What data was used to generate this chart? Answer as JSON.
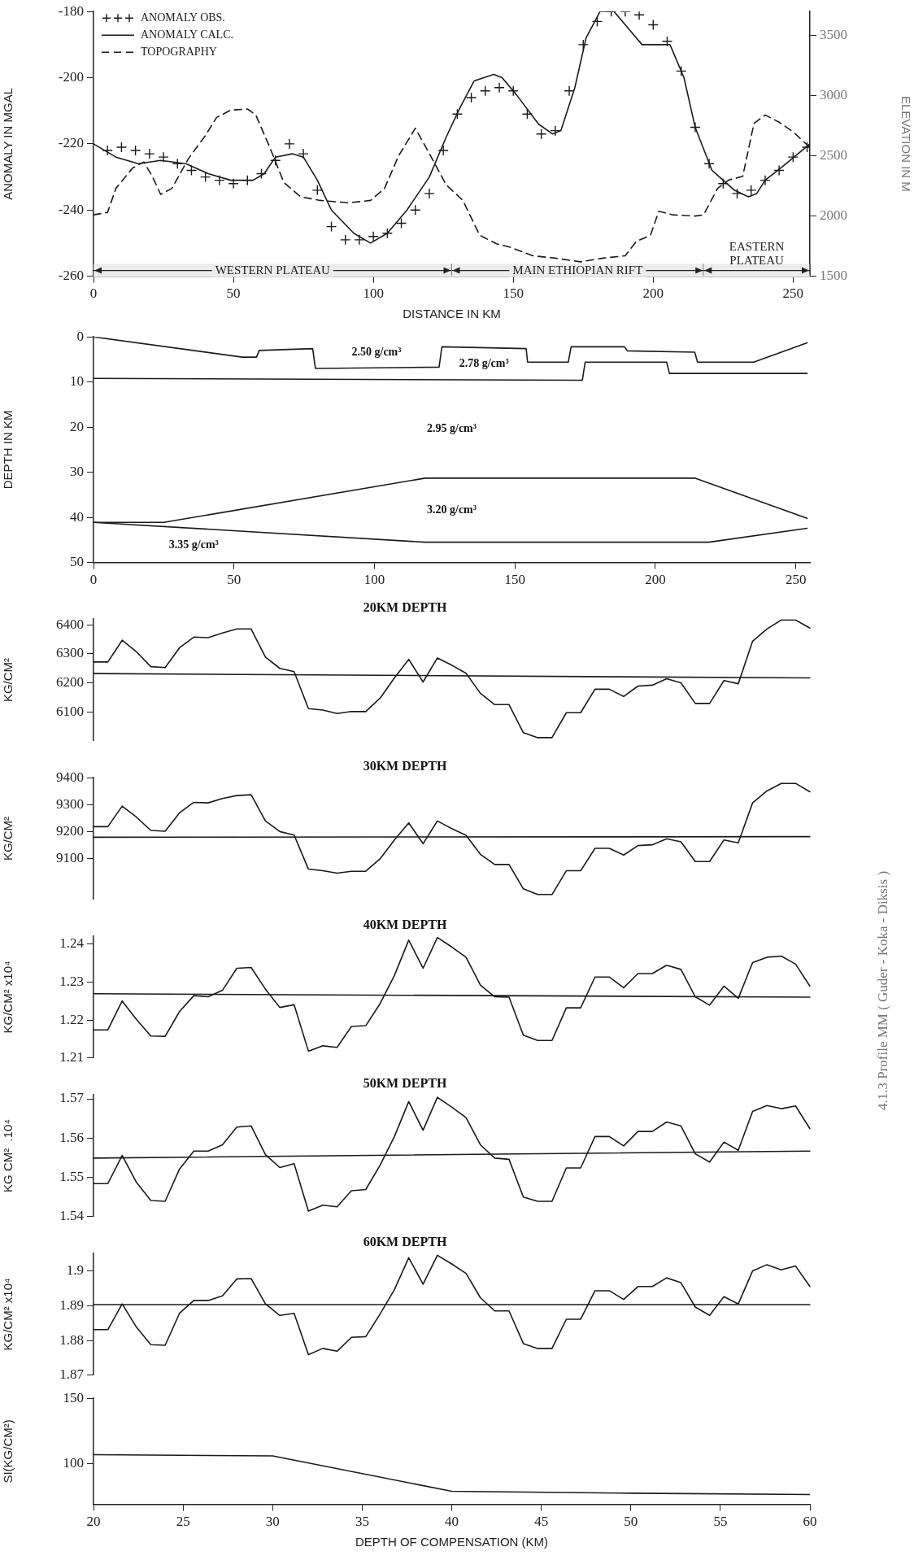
{
  "chart_data": [
    {
      "type": "line",
      "xlabel": "DISTANCE IN KM",
      "ylabel": "ANOMALY IN MGAL",
      "y2label": "ELEVATION IN M",
      "xlim": [
        0,
        256
      ],
      "xticks": [
        0,
        50,
        100,
        150,
        200,
        250
      ],
      "ylim": [
        -260,
        -180
      ],
      "yticks": [
        -260,
        -240,
        -220,
        -200,
        -180
      ],
      "y2lim": [
        1500,
        3700
      ],
      "y2ticks": [
        1500,
        2000,
        2500,
        3000,
        3500
      ],
      "legend": "top left",
      "series": [
        {
          "name": "ANOMALY OBS.",
          "type": "scatter",
          "marker": "cross",
          "color": "#1a1a1a",
          "x": [
            5,
            10,
            15,
            20,
            25,
            30,
            35,
            40,
            45,
            50,
            55,
            60,
            65,
            70,
            75,
            80,
            85,
            90,
            95,
            100,
            105,
            110,
            115,
            120,
            125,
            130,
            135,
            140,
            145,
            150,
            155,
            160,
            165,
            170,
            175,
            180,
            185,
            190,
            195,
            200,
            205,
            210,
            215,
            220,
            225,
            230,
            235,
            240,
            245,
            250,
            255
          ],
          "values": [
            -222,
            -221,
            -222,
            -223,
            -224,
            -226,
            -228,
            -230,
            -231,
            -232,
            -231,
            -229,
            -225,
            -220,
            -223,
            -234,
            -245,
            -249,
            -249,
            -248,
            -247,
            -244,
            -240,
            -235,
            -222,
            -211,
            -206,
            -204,
            -203,
            -204,
            -211,
            -217,
            -216,
            -204,
            -190,
            -183,
            -180,
            -180,
            -181,
            -184,
            -189,
            -198,
            -215,
            -226,
            -232,
            -235,
            -234,
            -231,
            -228,
            -224,
            -221
          ]
        },
        {
          "name": "ANOMALY CALC.",
          "type": "line",
          "color": "#1a1a1a",
          "x": [
            0,
            8,
            16,
            24,
            33,
            41,
            49,
            57,
            61,
            65,
            71,
            75,
            80,
            85,
            93,
            99,
            105,
            112,
            120,
            126,
            131,
            136,
            143,
            146,
            151,
            159,
            164,
            167,
            172,
            176,
            181,
            186,
            191,
            196,
            206,
            211,
            215,
            221,
            229,
            234,
            237,
            240,
            246,
            256
          ],
          "values": [
            -220,
            -224,
            -226,
            -225,
            -226,
            -229,
            -231,
            -231,
            -229,
            -224,
            -223,
            -224,
            -231,
            -240,
            -247,
            -250,
            -247,
            -240,
            -230,
            -218,
            -209,
            -201,
            -199,
            -200,
            -205,
            -214,
            -217,
            -216,
            -203,
            -188,
            -180,
            -180,
            -185,
            -190,
            -190,
            -200,
            -215,
            -228,
            -234,
            -236,
            -235,
            -231,
            -227,
            -220
          ]
        },
        {
          "name": "TOPOGRAPHY",
          "type": "line",
          "line_style": "dashed",
          "axis": "y2",
          "color": "#1a1a1a",
          "x": [
            0,
            5,
            8,
            14,
            18,
            21,
            24,
            28,
            34,
            40,
            44,
            49,
            55,
            58,
            63,
            68,
            74,
            81,
            91,
            99,
            104,
            109,
            115,
            120,
            126,
            132,
            138,
            144,
            149,
            157,
            165,
            174,
            182,
            190,
            194,
            199,
            202,
            207,
            215,
            218,
            223,
            227,
            232,
            234,
            236,
            240,
            245,
            250,
            256
          ],
          "values": [
            2010,
            2030,
            2230,
            2400,
            2450,
            2330,
            2180,
            2230,
            2480,
            2670,
            2820,
            2880,
            2890,
            2840,
            2570,
            2280,
            2160,
            2130,
            2110,
            2130,
            2230,
            2500,
            2730,
            2520,
            2260,
            2130,
            1840,
            1770,
            1740,
            1670,
            1650,
            1620,
            1650,
            1670,
            1790,
            1840,
            2040,
            2010,
            2000,
            2010,
            2230,
            2300,
            2330,
            2550,
            2770,
            2840,
            2780,
            2700,
            2570
          ]
        }
      ],
      "bands": [
        {
          "axis": "x",
          "from": 0,
          "to": 128,
          "label": "WESTERN PLATEAU"
        },
        {
          "axis": "x",
          "from": 128,
          "to": 218,
          "label": "MAIN ETHIOPIAN RIFT"
        },
        {
          "axis": "x",
          "from": 218,
          "to": 256,
          "label": "EASTERN PLATEAU"
        }
      ]
    },
    {
      "type": "line",
      "ylabel": "DEPTH IN KM",
      "xlim": [
        0,
        255
      ],
      "xticks": [
        0,
        50,
        100,
        150,
        200,
        250
      ],
      "ylim": [
        50,
        0
      ],
      "yticks": [
        0,
        10,
        20,
        30,
        40,
        50
      ],
      "series": [
        {
          "color": "#1a1a1a",
          "x": [
            0,
            53,
            58,
            59,
            78,
            79,
            123,
            124,
            154,
            154.5,
            169,
            170,
            189,
            190,
            214,
            215,
            235,
            254
          ],
          "values": [
            0,
            4.5,
            4.5,
            3,
            2.6,
            7,
            6.7,
            2.2,
            2.6,
            5.6,
            5.6,
            2.2,
            2.2,
            3.1,
            3.4,
            5.6,
            5.6,
            1.3
          ]
        },
        {
          "color": "#1a1a1a",
          "x": [
            0,
            174,
            175,
            204,
            205,
            254
          ],
          "values": [
            9.2,
            9.6,
            5.6,
            5.6,
            8.1,
            8.1
          ]
        },
        {
          "color": "#1a1a1a",
          "x": [
            0,
            25,
            118,
            214,
            254
          ],
          "values": [
            41.1,
            41.1,
            31.3,
            31.3,
            40.2
          ]
        },
        {
          "color": "#1a1a1a",
          "x": [
            0,
            118,
            219,
            254
          ],
          "values": [
            41.1,
            45.5,
            45.5,
            42.4
          ]
        }
      ],
      "annotations": [
        "2.50 g/cm³",
        "2.78 g/cm³",
        "2.95 g/cm³",
        "3.20 g/cm³",
        "3.35 g/cm³"
      ]
    },
    {
      "type": "line",
      "title": "20KM DEPTH",
      "ylabel": "KG/CM²",
      "ylim": [
        6000,
        6420
      ],
      "yticks": [
        6100,
        6200,
        6300,
        6400
      ],
      "categories": [
        null,
        null,
        null,
        null,
        null,
        null,
        null,
        null,
        null,
        null,
        null,
        null,
        null,
        null,
        null,
        null,
        null,
        null,
        null,
        null,
        null,
        null,
        null,
        null,
        null,
        null,
        null,
        null,
        null,
        null,
        null,
        null,
        null,
        null,
        null,
        null,
        null,
        null,
        null,
        null,
        null,
        null,
        null,
        null,
        null,
        null,
        null,
        null,
        null,
        null,
        null
      ],
      "series": [
        {
          "color": "#1a1a1a",
          "values": [
            6272,
            6272,
            6347,
            6307,
            6256,
            6253,
            6321,
            6358,
            6356,
            6372,
            6386,
            6386,
            6289,
            6250,
            6239,
            6111,
            6106,
            6094,
            6101,
            6101,
            6147,
            6217,
            6281,
            6203,
            6286,
            6261,
            6233,
            6164,
            6125,
            6125,
            6028,
            6011,
            6011,
            6097,
            6097,
            6178,
            6178,
            6153,
            6189,
            6192,
            6214,
            6200,
            6129,
            6129,
            6208,
            6197,
            6344,
            6386,
            6417,
            6417,
            6389
          ]
        },
        {
          "color": "#1a1a1a",
          "values": [
            6232,
            null,
            null,
            null,
            null,
            null,
            null,
            null,
            null,
            null,
            null,
            null,
            null,
            null,
            null,
            null,
            null,
            null,
            null,
            null,
            null,
            null,
            null,
            null,
            null,
            null,
            null,
            null,
            null,
            null,
            null,
            null,
            null,
            null,
            null,
            null,
            null,
            null,
            null,
            null,
            null,
            null,
            null,
            null,
            null,
            null,
            null,
            null,
            null,
            null,
            6217
          ]
        }
      ]
    },
    {
      "type": "line",
      "title": "30KM DEPTH",
      "ylabel": "KG/CM²",
      "ylim": [
        8950,
        9400
      ],
      "yticks": [
        9100,
        9200,
        9300,
        9400
      ],
      "categories": [
        null,
        null,
        null,
        null,
        null,
        null,
        null,
        null,
        null,
        null,
        null,
        null,
        null,
        null,
        null,
        null,
        null,
        null,
        null,
        null,
        null,
        null,
        null,
        null,
        null,
        null,
        null,
        null,
        null,
        null,
        null,
        null,
        null,
        null,
        null,
        null,
        null,
        null,
        null,
        null,
        null,
        null,
        null,
        null,
        null,
        null,
        null,
        null,
        null,
        null,
        null
      ],
      "series": [
        {
          "color": "#1a1a1a",
          "values": [
            9219,
            9219,
            9295,
            9254,
            9205,
            9202,
            9270,
            9309,
            9307,
            9323,
            9334,
            9337,
            9240,
            9201,
            9188,
            9062,
            9056,
            9047,
            9054,
            9054,
            9100,
            9170,
            9233,
            9156,
            9240,
            9212,
            9187,
            9117,
            9079,
            9079,
            8989,
            8968,
            8968,
            9056,
            9056,
            9139,
            9139,
            9114,
            9149,
            9152,
            9174,
            9163,
            9090,
            9090,
            9170,
            9159,
            9307,
            9351,
            9379,
            9379,
            9348
          ]
        },
        {
          "color": "#1a1a1a",
          "values": [
            9180,
            null,
            null,
            null,
            null,
            null,
            null,
            null,
            null,
            null,
            null,
            null,
            null,
            null,
            null,
            null,
            null,
            null,
            null,
            null,
            null,
            null,
            null,
            null,
            null,
            null,
            null,
            null,
            null,
            null,
            null,
            null,
            null,
            null,
            null,
            null,
            null,
            null,
            null,
            null,
            null,
            null,
            null,
            null,
            null,
            null,
            null,
            null,
            null,
            null,
            9182
          ]
        }
      ]
    },
    {
      "type": "line",
      "title": "40KM DEPTH",
      "ylabel": "KG/CM² x10⁴",
      "ylim": [
        1.21,
        1.242
      ],
      "yticks": [
        1.21,
        1.22,
        1.23,
        1.24
      ],
      "annotations": [
        "4.1.3 Profile MM ( Guder - Koka - Diksis )"
      ],
      "categories": [
        null,
        null,
        null,
        null,
        null,
        null,
        null,
        null,
        null,
        null,
        null,
        null,
        null,
        null,
        null,
        null,
        null,
        null,
        null,
        null,
        null,
        null,
        null,
        null,
        null,
        null,
        null,
        null,
        null,
        null,
        null,
        null,
        null,
        null,
        null,
        null,
        null,
        null,
        null,
        null,
        null,
        null,
        null,
        null,
        null,
        null,
        null,
        null,
        null,
        null,
        null
      ],
      "series": [
        {
          "color": "#1a1a1a",
          "values": [
            1.2174,
            1.2174,
            1.225,
            1.2201,
            1.2158,
            1.2157,
            1.2222,
            1.2264,
            1.2261,
            1.2278,
            1.2336,
            1.2338,
            1.2281,
            1.2233,
            1.224,
            1.2118,
            1.2132,
            1.2128,
            1.2183,
            1.2185,
            1.2243,
            1.2317,
            1.241,
            1.2336,
            1.2417,
            1.2392,
            1.2365,
            1.2292,
            1.2261,
            1.226,
            1.216,
            1.2146,
            1.2146,
            1.2232,
            1.2232,
            1.2313,
            1.2313,
            1.2285,
            1.2322,
            1.2322,
            1.2344,
            1.2333,
            1.2261,
            1.2239,
            1.2289,
            1.2257,
            1.2351,
            1.2365,
            1.2368,
            1.2347,
            1.2289
          ]
        },
        {
          "color": "#1a1a1a",
          "values": [
            1.2269,
            null,
            null,
            null,
            null,
            null,
            null,
            null,
            null,
            null,
            null,
            null,
            null,
            null,
            null,
            null,
            null,
            null,
            null,
            null,
            null,
            null,
            null,
            null,
            null,
            null,
            null,
            null,
            null,
            null,
            null,
            null,
            null,
            null,
            null,
            null,
            null,
            null,
            null,
            null,
            null,
            null,
            null,
            null,
            null,
            null,
            null,
            null,
            null,
            null,
            1.226
          ]
        }
      ]
    },
    {
      "type": "line",
      "title": "50KM DEPTH",
      "ylabel": "KG CM²  .10⁴",
      "ylim": [
        1.54,
        1.571
      ],
      "yticks": [
        1.54,
        1.55,
        1.56,
        1.57
      ],
      "categories": [
        null,
        null,
        null,
        null,
        null,
        null,
        null,
        null,
        null,
        null,
        null,
        null,
        null,
        null,
        null,
        null,
        null,
        null,
        null,
        null,
        null,
        null,
        null,
        null,
        null,
        null,
        null,
        null,
        null,
        null,
        null,
        null,
        null,
        null,
        null,
        null,
        null,
        null,
        null,
        null,
        null,
        null,
        null,
        null,
        null,
        null,
        null,
        null,
        null,
        null,
        null
      ],
      "series": [
        {
          "color": "#1a1a1a",
          "values": [
            1.5484,
            1.5484,
            1.5556,
            1.5487,
            1.5441,
            1.5439,
            1.5521,
            1.5567,
            1.5567,
            1.5583,
            1.5628,
            1.5631,
            1.5558,
            1.5525,
            1.5535,
            1.5414,
            1.5429,
            1.5425,
            1.5466,
            1.5469,
            1.5531,
            1.5604,
            1.5693,
            1.562,
            1.5704,
            1.5679,
            1.5652,
            1.5583,
            1.5549,
            1.5546,
            1.545,
            1.5439,
            1.5439,
            1.5524,
            1.5524,
            1.5604,
            1.5604,
            1.558,
            1.5617,
            1.5617,
            1.5641,
            1.5631,
            1.556,
            1.5539,
            1.559,
            1.5569,
            1.5668,
            1.5683,
            1.5675,
            1.5682,
            1.5624
          ]
        },
        {
          "color": "#1a1a1a",
          "values": [
            1.5549,
            null,
            null,
            null,
            null,
            null,
            null,
            null,
            null,
            null,
            null,
            null,
            null,
            null,
            null,
            null,
            null,
            null,
            null,
            null,
            null,
            null,
            null,
            null,
            null,
            null,
            null,
            null,
            null,
            null,
            null,
            null,
            null,
            null,
            null,
            null,
            null,
            null,
            null,
            null,
            null,
            null,
            null,
            null,
            null,
            null,
            null,
            null,
            null,
            null,
            1.5567
          ]
        }
      ]
    },
    {
      "type": "line",
      "title": "60KM DEPTH",
      "ylabel": "KG/CM² x10⁴",
      "ylim": [
        1.87,
        1.905
      ],
      "yticks": [
        1.87,
        1.88,
        1.89,
        1.9
      ],
      "categories": [
        null,
        null,
        null,
        null,
        null,
        null,
        null,
        null,
        null,
        null,
        null,
        null,
        null,
        null,
        null,
        null,
        null,
        null,
        null,
        null,
        null,
        null,
        null,
        null,
        null,
        null,
        null,
        null,
        null,
        null,
        null,
        null,
        null,
        null,
        null,
        null,
        null,
        null,
        null,
        null,
        null,
        null,
        null,
        null,
        null,
        null,
        null,
        null,
        null,
        null,
        null
      ],
      "series": [
        {
          "color": "#1a1a1a",
          "values": [
            1.8831,
            1.8831,
            1.8905,
            1.8838,
            1.8788,
            1.8786,
            1.8878,
            1.8915,
            1.8915,
            1.8928,
            1.8977,
            1.8978,
            1.8905,
            1.8872,
            1.8878,
            1.8759,
            1.8777,
            1.8769,
            1.8809,
            1.8811,
            1.8876,
            1.8946,
            1.9038,
            1.8962,
            1.9045,
            1.902,
            1.8993,
            1.8923,
            1.8885,
            1.8885,
            1.8791,
            1.8777,
            1.8777,
            1.8861,
            1.8861,
            1.8943,
            1.8943,
            1.8918,
            1.8955,
            1.8955,
            1.898,
            1.8966,
            1.8896,
            1.8872,
            1.8926,
            1.8905,
            1.9,
            1.9018,
            1.9003,
            1.9014,
            1.8955
          ]
        },
        {
          "color": "#1a1a1a",
          "values": [
            1.8903,
            null,
            null,
            null,
            null,
            null,
            null,
            null,
            null,
            null,
            null,
            null,
            null,
            null,
            null,
            null,
            null,
            null,
            null,
            null,
            null,
            null,
            null,
            null,
            null,
            null,
            null,
            null,
            null,
            null,
            null,
            null,
            null,
            null,
            null,
            null,
            null,
            null,
            null,
            null,
            null,
            null,
            null,
            null,
            null,
            null,
            null,
            null,
            null,
            null,
            1.8903
          ]
        }
      ]
    },
    {
      "type": "line",
      "xlabel": "DEPTH OF COMPENSATION (KM)",
      "ylabel": "SI(KG/CM²)",
      "xlim": [
        20,
        60
      ],
      "xticks": [
        20,
        25,
        30,
        35,
        40,
        45,
        50,
        55,
        60
      ],
      "ylim": [
        69,
        150
      ],
      "yticks": [
        100,
        150
      ],
      "series": [
        {
          "color": "#1a1a1a",
          "x": [
            20,
            30,
            40,
            50,
            60
          ],
          "values": [
            107,
            106,
            79,
            77.5,
            76.5
          ]
        }
      ]
    }
  ]
}
